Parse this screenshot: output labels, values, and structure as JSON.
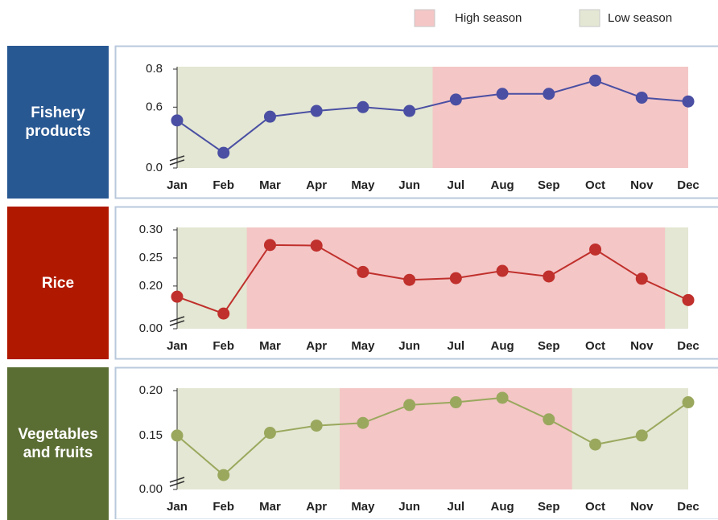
{
  "legend": [
    {
      "name": "High season",
      "color": "#f4c6c6"
    },
    {
      "name": "Low season",
      "color": "#e3e7d3"
    }
  ],
  "chart_data": [
    {
      "type": "line",
      "title": "Fishery products",
      "title_color": "#285892",
      "color": "#4a4fa3",
      "categories": [
        "Jan",
        "Feb",
        "Mar",
        "Apr",
        "May",
        "Jun",
        "Jul",
        "Aug",
        "Sep",
        "Oct",
        "Nov",
        "Dec"
      ],
      "values": [
        0.53,
        0.36,
        0.55,
        0.58,
        0.6,
        0.58,
        0.64,
        0.67,
        0.67,
        0.74,
        0.65,
        0.63
      ],
      "ylim": [
        0,
        0.8
      ],
      "axis_break": [
        0,
        0.28
      ],
      "yticks": [
        {
          "value": 0,
          "label": "0.0"
        },
        0.6,
        0.8
      ],
      "high_season": [
        "Jul",
        "Dec"
      ]
    },
    {
      "type": "line",
      "title": "Rice",
      "title_color": "#b01800",
      "color": "#c0302c",
      "categories": [
        "Jan",
        "Feb",
        "Mar",
        "Apr",
        "May",
        "Jun",
        "Jul",
        "Aug",
        "Sep",
        "Oct",
        "Nov",
        "Dec"
      ],
      "values": [
        0.181,
        0.151,
        0.273,
        0.272,
        0.225,
        0.211,
        0.214,
        0.227,
        0.217,
        0.265,
        0.213,
        0.175
      ],
      "ylim": [
        0,
        0.3
      ],
      "axis_break": [
        0,
        0.124
      ],
      "yticks": [
        {
          "value": 0,
          "label": "0.00"
        },
        {
          "value": 0.2,
          "label": "0.20"
        },
        {
          "value": 0.25,
          "label": "0.25"
        },
        {
          "value": 0.3,
          "label": "0.30"
        }
      ],
      "high_season": [
        "Mar",
        "Nov"
      ]
    },
    {
      "type": "line",
      "title": "Vegetables and fruits",
      "title_color": "#5a6d33",
      "color": "#9aa85e",
      "categories": [
        "Jan",
        "Feb",
        "Mar",
        "Apr",
        "May",
        "Jun",
        "Jul",
        "Aug",
        "Sep",
        "Oct",
        "Nov",
        "Dec"
      ],
      "values": [
        0.15,
        0.106,
        0.153,
        0.161,
        0.164,
        0.184,
        0.187,
        0.192,
        0.168,
        0.14,
        0.15,
        0.187
      ],
      "ylim": [
        0,
        0.2
      ],
      "axis_break": [
        0,
        0.09
      ],
      "yticks": [
        {
          "value": 0,
          "label": "0.00"
        },
        {
          "value": 0.15,
          "label": "0.15"
        },
        {
          "value": 0.2,
          "label": "0.20"
        }
      ],
      "high_season": [
        "May",
        "Sep"
      ]
    }
  ]
}
